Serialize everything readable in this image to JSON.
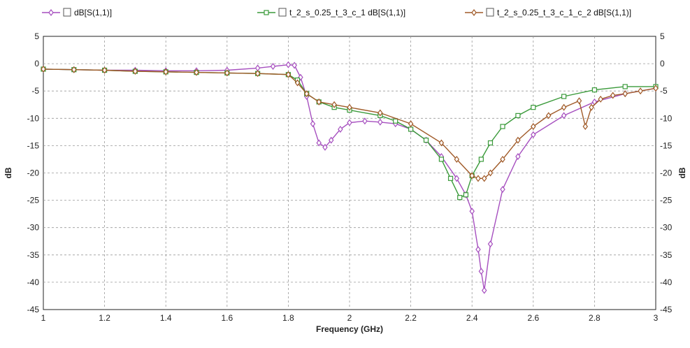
{
  "chart_data": {
    "type": "line",
    "xlabel": "Frequency (GHz)",
    "ylabel_left": "dB",
    "ylabel_right": "dB",
    "xlim": [
      1,
      3
    ],
    "ylim": [
      -45,
      5
    ],
    "x_ticks": [
      "1",
      "1.2",
      "1.4",
      "1.6",
      "1.8",
      "2",
      "2.2",
      "2.4",
      "2.6",
      "2.8",
      "3"
    ],
    "y_ticks": [
      "5",
      "0",
      "-5",
      "-10",
      "-15",
      "-20",
      "-25",
      "-30",
      "-35",
      "-40",
      "-45"
    ],
    "grid": true,
    "legend_position": "top",
    "series": [
      {
        "name": "dB[S(1,1)]",
        "color": "#a64fbf",
        "marker": "diamond",
        "x": [
          1.0,
          1.1,
          1.2,
          1.3,
          1.4,
          1.5,
          1.6,
          1.7,
          1.75,
          1.8,
          1.82,
          1.84,
          1.86,
          1.88,
          1.9,
          1.92,
          1.94,
          1.97,
          2.0,
          2.05,
          2.1,
          2.15,
          2.2,
          2.25,
          2.3,
          2.35,
          2.38,
          2.4,
          2.42,
          2.43,
          2.44,
          2.46,
          2.5,
          2.55,
          2.6,
          2.7,
          2.8,
          2.9,
          3.0
        ],
        "y": [
          -1.0,
          -1.1,
          -1.2,
          -1.2,
          -1.3,
          -1.3,
          -1.2,
          -0.8,
          -0.5,
          -0.2,
          -0.3,
          -2.5,
          -6.0,
          -11.0,
          -14.5,
          -15.3,
          -14.0,
          -12.0,
          -10.8,
          -10.5,
          -10.7,
          -11.0,
          -12.0,
          -14.0,
          -17.0,
          -21.0,
          -24.0,
          -27.0,
          -34.0,
          -38.0,
          -41.5,
          -33.0,
          -23.0,
          -17.0,
          -13.0,
          -9.5,
          -7.0,
          -5.5,
          -4.5
        ]
      },
      {
        "name": "t_2_s_0.25_t_3_c_1 dB[S(1,1)]",
        "color": "#3a9a3a",
        "marker": "square",
        "x": [
          1.0,
          1.1,
          1.2,
          1.3,
          1.4,
          1.5,
          1.6,
          1.7,
          1.8,
          1.83,
          1.86,
          1.9,
          1.95,
          2.0,
          2.1,
          2.15,
          2.2,
          2.25,
          2.3,
          2.33,
          2.36,
          2.38,
          2.4,
          2.43,
          2.46,
          2.5,
          2.55,
          2.6,
          2.7,
          2.8,
          2.9,
          3.0
        ],
        "y": [
          -1.0,
          -1.1,
          -1.2,
          -1.4,
          -1.5,
          -1.6,
          -1.7,
          -1.8,
          -2.0,
          -3.0,
          -5.5,
          -7.0,
          -8.0,
          -8.5,
          -9.5,
          -10.5,
          -12.0,
          -14.0,
          -17.5,
          -21.0,
          -24.5,
          -24.0,
          -20.5,
          -17.5,
          -14.5,
          -11.5,
          -9.5,
          -8.0,
          -6.0,
          -4.8,
          -4.2,
          -4.2
        ]
      },
      {
        "name": "t_2_s_0.25_t_3_c_1_c_2 dB[S(1,1)]",
        "color": "#a05a28",
        "marker": "diamond",
        "x": [
          1.0,
          1.1,
          1.2,
          1.3,
          1.4,
          1.5,
          1.6,
          1.7,
          1.8,
          1.83,
          1.86,
          1.9,
          1.95,
          2.0,
          2.1,
          2.2,
          2.3,
          2.35,
          2.4,
          2.42,
          2.44,
          2.46,
          2.5,
          2.55,
          2.6,
          2.65,
          2.7,
          2.75,
          2.77,
          2.79,
          2.82,
          2.86,
          2.9,
          2.95,
          3.0
        ],
        "y": [
          -1.0,
          -1.1,
          -1.2,
          -1.4,
          -1.5,
          -1.6,
          -1.7,
          -1.8,
          -2.0,
          -3.5,
          -5.5,
          -7.0,
          -7.5,
          -8.0,
          -9.0,
          -11.0,
          -14.5,
          -17.5,
          -20.5,
          -21.0,
          -21.0,
          -20.0,
          -17.5,
          -14.0,
          -11.5,
          -9.5,
          -8.0,
          -6.8,
          -11.5,
          -8.0,
          -6.5,
          -5.8,
          -5.5,
          -5.0,
          -4.5
        ]
      }
    ]
  }
}
